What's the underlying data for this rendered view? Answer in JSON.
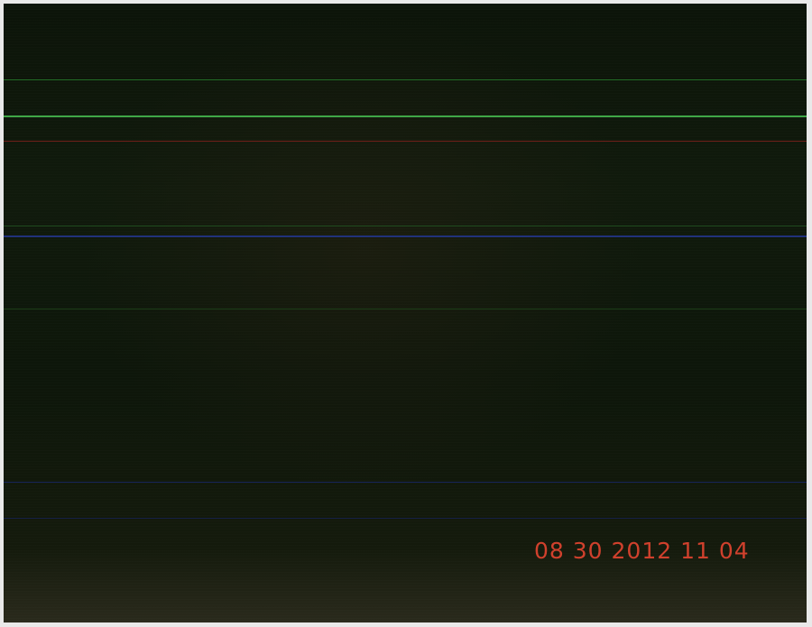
{
  "overlay": {
    "timestamp": "08 30 2012 11 04"
  },
  "colors": {
    "timestamp": "#d0402c",
    "background": "#0e170b"
  }
}
